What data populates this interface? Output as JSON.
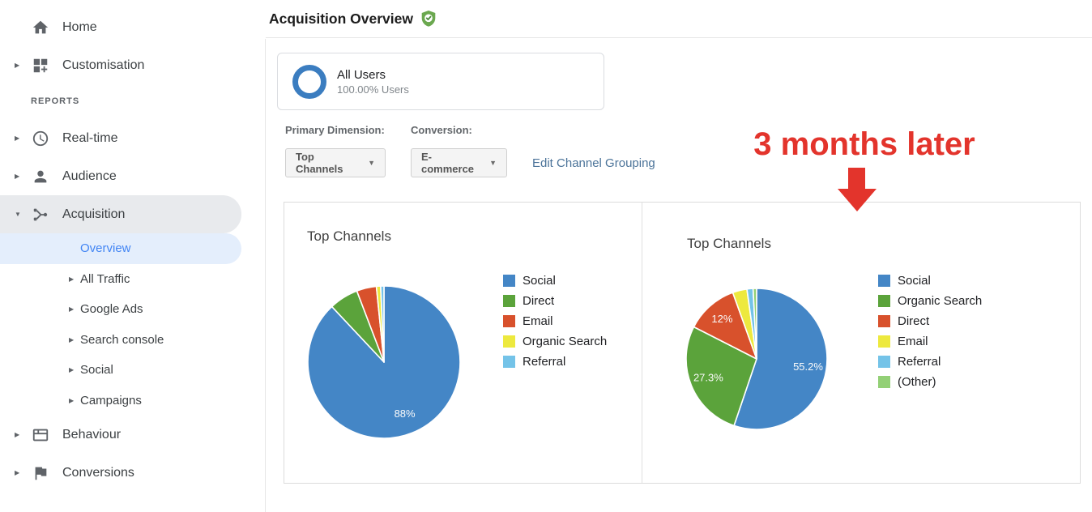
{
  "sidebar": {
    "items": [
      {
        "level": "top",
        "icon": "home-icon",
        "label": "Home",
        "arrow": "none",
        "active": ""
      },
      {
        "level": "top",
        "icon": "customisation-icon",
        "label": "Customisation",
        "arrow": "collapsed",
        "active": ""
      },
      {
        "level": "section",
        "label": "REPORTS"
      },
      {
        "level": "top",
        "icon": "realtime-clock-icon",
        "label": "Real-time",
        "arrow": "collapsed",
        "active": ""
      },
      {
        "level": "top",
        "icon": "audience-person-icon",
        "label": "Audience",
        "arrow": "collapsed",
        "active": ""
      },
      {
        "level": "top",
        "icon": "acquisition-icon",
        "label": "Acquisition",
        "arrow": "expanded",
        "active": "gray"
      },
      {
        "level": "sub",
        "label": "Overview",
        "arrow": "none",
        "active": "blue"
      },
      {
        "level": "sub",
        "label": "All Traffic",
        "arrow": "collapsed",
        "active": ""
      },
      {
        "level": "sub",
        "label": "Google Ads",
        "arrow": "collapsed",
        "active": ""
      },
      {
        "level": "sub",
        "label": "Search console",
        "arrow": "collapsed",
        "active": ""
      },
      {
        "level": "sub",
        "label": "Social",
        "arrow": "collapsed",
        "active": ""
      },
      {
        "level": "sub",
        "label": "Campaigns",
        "arrow": "collapsed",
        "active": ""
      },
      {
        "level": "top",
        "icon": "behaviour-icon",
        "label": "Behaviour",
        "arrow": "collapsed",
        "active": ""
      },
      {
        "level": "top",
        "icon": "conversions-flag-icon",
        "label": "Conversions",
        "arrow": "collapsed",
        "active": ""
      }
    ]
  },
  "header": {
    "title": "Acquisition Overview"
  },
  "segment_card": {
    "title": "All Users",
    "subtitle": "100.00% Users"
  },
  "controls": {
    "primary_dimension_label": "Primary Dimension:",
    "primary_dimension_value": "Top Channels",
    "conversion_label": "Conversion:",
    "conversion_value": "E-commerce",
    "edit_link": "Edit Channel Grouping"
  },
  "annotation": {
    "text": "3 months later",
    "color": "#E3342C"
  },
  "colors": {
    "overview_active_blue": "#4285f4",
    "link_blue": "#4b7399",
    "segment_ring_blue": "#3b7dc0",
    "badge_green": "#6BA84F"
  },
  "chart_data": [
    {
      "type": "pie",
      "title": "Top Channels",
      "legend_position": "right",
      "slices": [
        {
          "name": "Social",
          "value": 88,
          "color": "#4486C6",
          "label": "88%"
        },
        {
          "name": "Direct",
          "value": 6.2,
          "color": "#5BA33B",
          "label": ""
        },
        {
          "name": "Email",
          "value": 4.2,
          "color": "#D8512C",
          "label": ""
        },
        {
          "name": "Organic Search",
          "value": 0.9,
          "color": "#EDE93E",
          "label": ""
        },
        {
          "name": "Referral",
          "value": 0.7,
          "color": "#74C3E8",
          "label": ""
        }
      ]
    },
    {
      "type": "pie",
      "title": "Top Channels",
      "legend_position": "right",
      "slices": [
        {
          "name": "Social",
          "value": 55.2,
          "color": "#4486C6",
          "label": "55.2%"
        },
        {
          "name": "Organic Search",
          "value": 27.3,
          "color": "#5BA33B",
          "label": "27.3%"
        },
        {
          "name": "Direct",
          "value": 12,
          "color": "#D8512C",
          "label": "12%"
        },
        {
          "name": "Email",
          "value": 3.3,
          "color": "#EDE93E",
          "label": ""
        },
        {
          "name": "Referral",
          "value": 1.4,
          "color": "#74C3E8",
          "label": ""
        },
        {
          "name": "(Other)",
          "value": 0.8,
          "color": "#93D076",
          "label": ""
        }
      ]
    }
  ]
}
